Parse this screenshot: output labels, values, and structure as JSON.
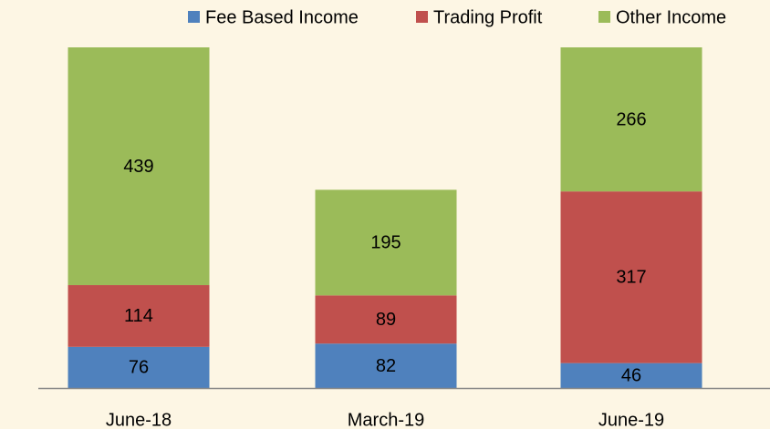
{
  "chart_data": {
    "type": "stacked_bar",
    "categories": [
      "June-18",
      "March-19",
      "June-19"
    ],
    "series": [
      {
        "name": "Fee Based Income",
        "color": "#4f81bd",
        "values": [
          76,
          82,
          46
        ]
      },
      {
        "name": "Trading Profit",
        "color": "#c0504d",
        "values": [
          114,
          89,
          317
        ]
      },
      {
        "name": "Other Income",
        "color": "#9bbb59",
        "values": [
          439,
          195,
          266
        ]
      }
    ],
    "legend": "top-right"
  }
}
